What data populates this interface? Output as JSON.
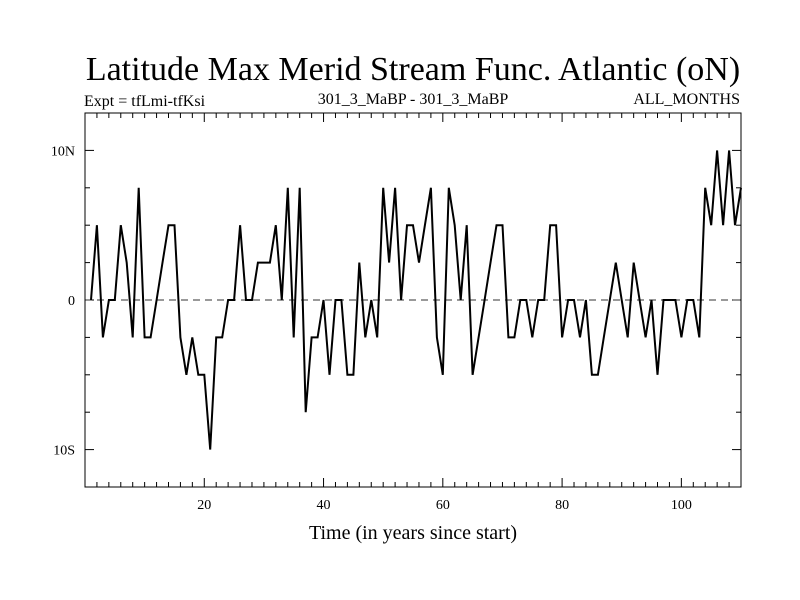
{
  "chart_data": {
    "type": "line",
    "title": "Latitude Max Merid Stream Func. Atlantic (oN)",
    "subtitle_left": "Expt = tfLmi-tfKsi",
    "subtitle_center": "301_3_MaBP - 301_3_MaBP",
    "subtitle_right": "ALL_MONTHS",
    "xlabel": "Time (in years since start)",
    "ylabel": "",
    "xlim": [
      0,
      110
    ],
    "ylim": [
      -12.5,
      12.5
    ],
    "x_ticks": [
      {
        "value": 20,
        "label": "20"
      },
      {
        "value": 40,
        "label": "40"
      },
      {
        "value": 60,
        "label": "60"
      },
      {
        "value": 80,
        "label": "80"
      },
      {
        "value": 100,
        "label": "100"
      }
    ],
    "y_ticks": [
      {
        "value": 10,
        "label": "10N"
      },
      {
        "value": 0,
        "label": "0"
      },
      {
        "value": -10,
        "label": "10S"
      }
    ],
    "reference_line": 0,
    "series": [
      {
        "name": "Latitude Max",
        "color": "#000000",
        "x": [
          1,
          2,
          3,
          4,
          5,
          6,
          7,
          8,
          9,
          10,
          11,
          12,
          13,
          14,
          15,
          16,
          17,
          18,
          19,
          20,
          21,
          22,
          23,
          24,
          25,
          26,
          27,
          28,
          29,
          30,
          31,
          32,
          33,
          34,
          35,
          36,
          37,
          38,
          39,
          40,
          41,
          42,
          43,
          44,
          45,
          46,
          47,
          48,
          49,
          50,
          51,
          52,
          53,
          54,
          55,
          56,
          57,
          58,
          59,
          60,
          61,
          62,
          63,
          64,
          65,
          66,
          67,
          68,
          69,
          70,
          71,
          72,
          73,
          74,
          75,
          76,
          77,
          78,
          79,
          80,
          81,
          82,
          83,
          84,
          85,
          86,
          87,
          88,
          89,
          90,
          91,
          92,
          93,
          94,
          95,
          96,
          97,
          98,
          99,
          100,
          101,
          102,
          103,
          104,
          105,
          106,
          107,
          108,
          109,
          110
        ],
        "values": [
          0,
          5,
          -2.5,
          0,
          0,
          5,
          2.5,
          -2.5,
          7.5,
          -2.5,
          -2.5,
          0,
          2.5,
          5,
          5,
          -2.5,
          -5,
          -2.5,
          -5,
          -5,
          -10,
          -2.5,
          -2.5,
          0,
          0,
          5,
          0,
          0,
          2.5,
          2.5,
          2.5,
          5,
          0,
          7.5,
          -2.5,
          7.5,
          -7.5,
          -2.5,
          -2.5,
          0,
          -5,
          0,
          0,
          -5,
          -5,
          2.5,
          -2.5,
          0,
          -2.5,
          7.5,
          2.5,
          7.5,
          0,
          5,
          5,
          2.5,
          5,
          7.5,
          -2.5,
          -5,
          7.5,
          5,
          0,
          5,
          -5,
          -2.5,
          0,
          2.5,
          5,
          5,
          -2.5,
          -2.5,
          0,
          0,
          -2.5,
          0,
          0,
          5,
          5,
          -2.5,
          0,
          0,
          -2.5,
          0,
          -5,
          -5,
          -2.5,
          0,
          2.5,
          0,
          -2.5,
          2.5,
          0,
          -2.5,
          0,
          -5,
          0,
          0,
          0,
          -2.5,
          0,
          0,
          -2.5,
          7.5,
          5,
          10,
          5,
          10,
          5,
          7.5
        ]
      }
    ]
  }
}
